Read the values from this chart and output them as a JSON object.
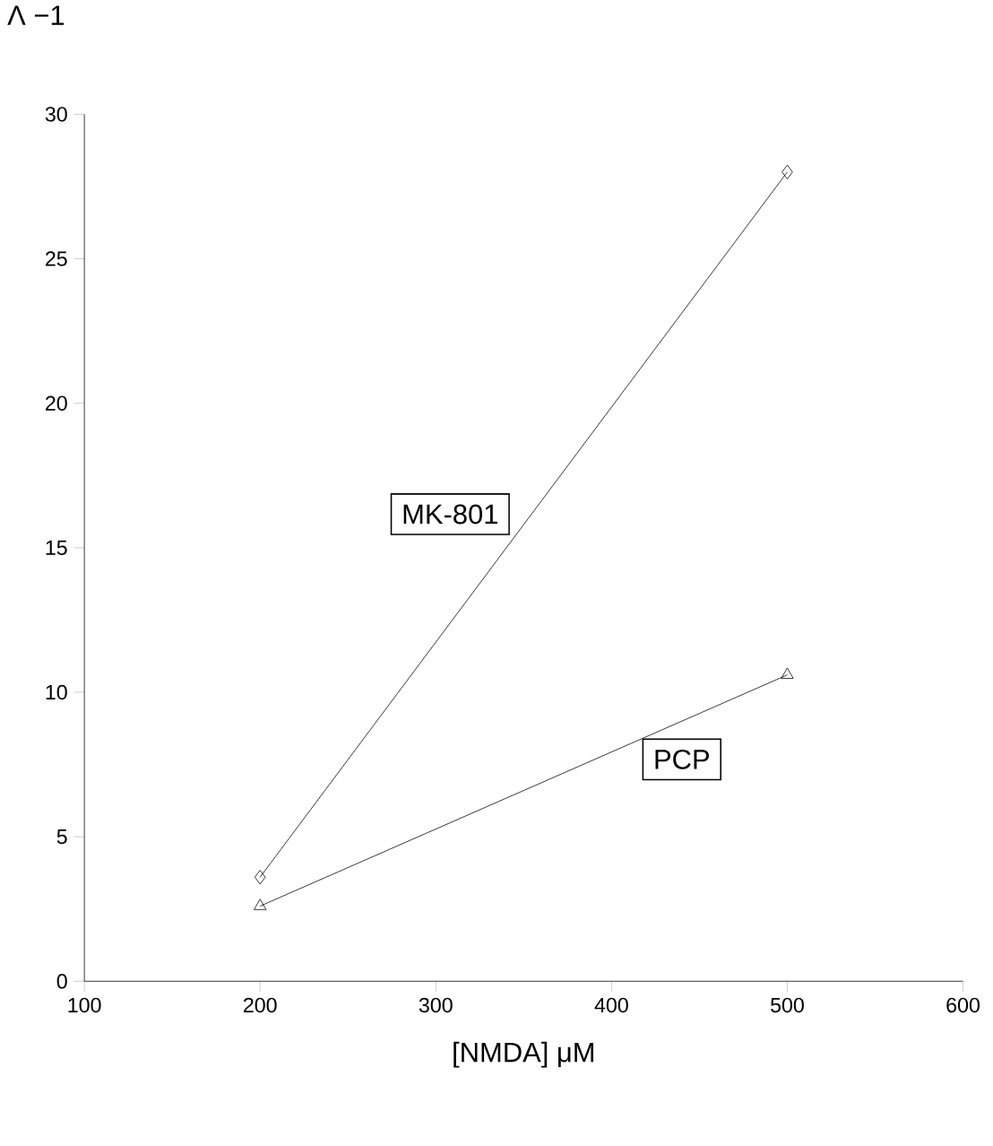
{
  "chart_data": {
    "type": "line",
    "xlabel": "[NMDA]  μM",
    "ylabel": "Λ −1",
    "xlim": [
      100,
      600
    ],
    "xticks": [
      100,
      200,
      300,
      400,
      500,
      600
    ],
    "ylim": [
      0,
      30
    ],
    "yticks": [
      0,
      5,
      10,
      15,
      20,
      25,
      30
    ],
    "x": [
      200,
      500
    ],
    "grid": false,
    "legend": false,
    "line_style": "solid",
    "series": [
      {
        "name": "MK-801",
        "color": "#000000",
        "marker": "diamond",
        "values": [
          3.6,
          28
        ]
      },
      {
        "name": "PCP",
        "color": "#000000",
        "marker": "triangle",
        "values": [
          2.6,
          10.6
        ]
      }
    ]
  }
}
